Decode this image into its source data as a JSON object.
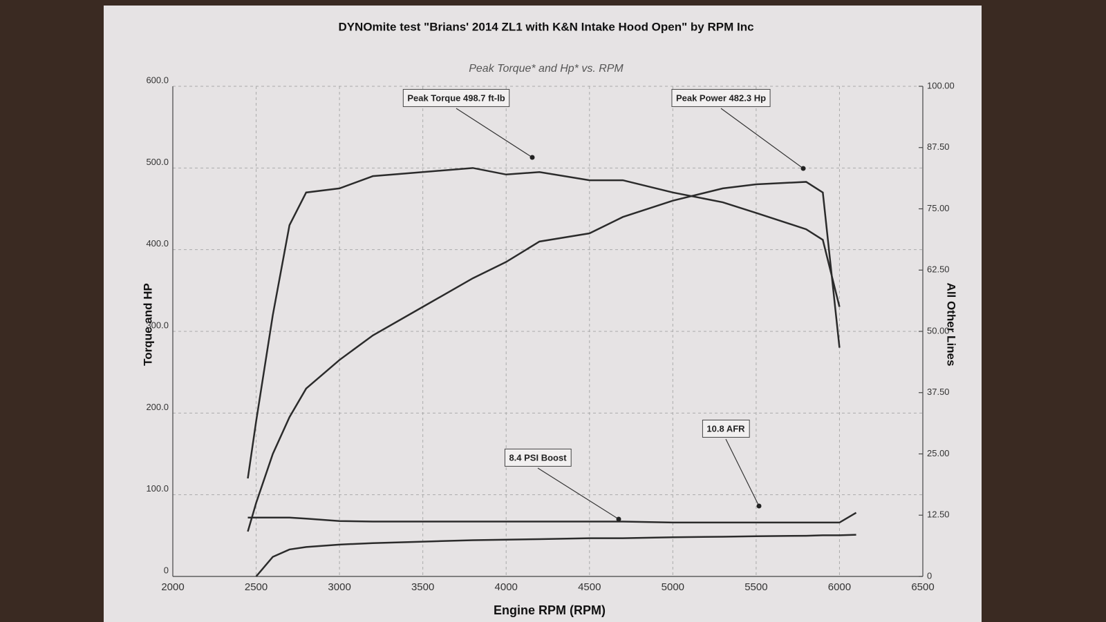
{
  "chart_data": {
    "type": "line",
    "title": "DYNOmite test \"Brians' 2014 ZL1 with K&N Intake Hood Open\" by RPM Inc",
    "subtitle": "Peak Torque* and Hp* vs. RPM",
    "x_label": "Engine RPM (RPM)",
    "y_label": "Torque and HP",
    "y2_label": "All Other Lines",
    "annotations": [
      "Peak Torque 498.7 ft-lb",
      "Peak Power 482.3 Hp",
      "10.8 AFR",
      "8.4 PSI Boost"
    ],
    "x": [
      2450,
      2500,
      2600,
      2700,
      2800,
      3000,
      3200,
      3500,
      3800,
      4000,
      4200,
      4500,
      4700,
      5000,
      5300,
      5500,
      5800,
      5900,
      6000,
      6100
    ],
    "series": [
      {
        "color": "#2b2b2b",
        "values": [
          120,
          190,
          320,
          430,
          470,
          475,
          490,
          495,
          500,
          492,
          495,
          485,
          485,
          470,
          458,
          445,
          425,
          412,
          330,
          null
        ]
      },
      {
        "color": "#2b2b2b",
        "values": [
          55,
          90,
          150,
          195,
          230,
          265,
          295,
          330,
          365,
          385,
          410,
          420,
          440,
          460,
          475,
          480,
          483,
          470,
          280,
          null
        ]
      },
      {
        "color": "#2b2b2b",
        "axis": "y2",
        "values": [
          null,
          0,
          4,
          5.5,
          6,
          6.5,
          6.8,
          7.1,
          7.4,
          7.5,
          7.6,
          7.8,
          7.8,
          8,
          8.1,
          8.2,
          8.3,
          8.4,
          8.4,
          8.5
        ]
      },
      {
        "color": "#2b2b2b",
        "axis": "y2",
        "values": [
          12,
          12,
          12,
          12,
          11.8,
          11.3,
          11.2,
          11.2,
          11.2,
          11.2,
          11.2,
          11.2,
          11.2,
          11,
          11,
          11,
          11,
          11,
          11,
          13
        ]
      }
    ],
    "xlim": [
      2000,
      6500
    ],
    "xticks": [
      2000,
      2500,
      3000,
      3500,
      4000,
      4500,
      5000,
      5500,
      6000,
      6500
    ],
    "ylim": [
      0,
      600
    ],
    "yticks": [
      0,
      {
        "value": 100,
        "label": "100.0"
      },
      {
        "value": 200,
        "label": "200.0"
      },
      {
        "value": 300,
        "label": "300.0"
      },
      {
        "value": 400,
        "label": "400.0"
      },
      {
        "value": 500,
        "label": "500.0"
      },
      {
        "value": 600,
        "label": "600.0"
      }
    ],
    "y2lim": [
      0,
      100
    ],
    "y2ticks": [
      0,
      {
        "value": 12.5,
        "label": "12.50"
      },
      {
        "value": 25,
        "label": "25.00"
      },
      {
        "value": 37.5,
        "label": "37.50"
      },
      {
        "value": 50,
        "label": "50.00"
      },
      {
        "value": 62.5,
        "label": "62.50"
      },
      {
        "value": 75,
        "label": "75.00"
      },
      {
        "value": 87.5,
        "label": "87.50"
      },
      {
        "value": 100,
        "label": "100.00"
      }
    ],
    "grid": true
  }
}
